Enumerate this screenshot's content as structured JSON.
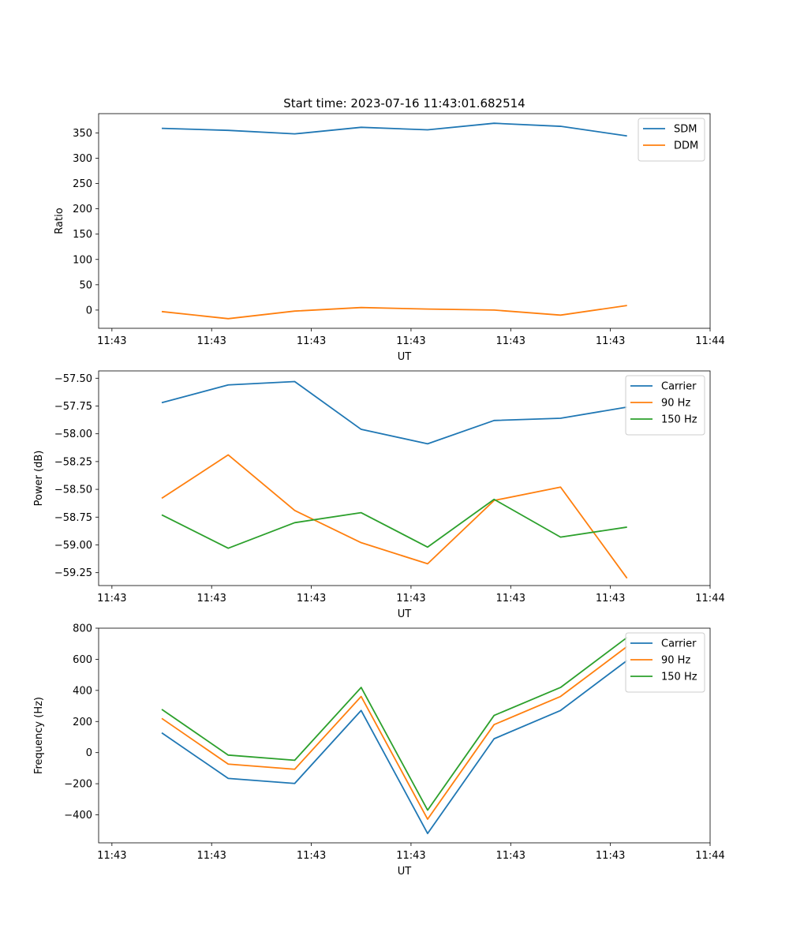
{
  "figure_title": "Start time: 2023-07-16 11:43:01.682514",
  "colors": {
    "c1": "#1f77b4",
    "c2": "#ff7f0e",
    "c3": "#2ca02c"
  },
  "chart_data": [
    {
      "type": "line",
      "title": "Start time: 2023-07-16 11:43:01.682514",
      "xlabel": "UT",
      "ylabel": "Ratio",
      "xlim": [
        0.4,
        9.6
      ],
      "x_ticks": [
        0.6,
        2.1,
        3.6,
        5.1,
        6.6,
        8.1,
        9.6
      ],
      "x_tick_labels": [
        "11:43",
        "11:43",
        "11:43",
        "11:43",
        "11:43",
        "11:43",
        "11:44"
      ],
      "ylim": [
        -36,
        388
      ],
      "y_ticks": [
        0,
        50,
        100,
        150,
        200,
        250,
        300,
        350
      ],
      "y_tick_labels": [
        "0",
        "50",
        "100",
        "150",
        "200",
        "250",
        "300",
        "350"
      ],
      "x": [
        1.35,
        2.35,
        3.35,
        4.35,
        5.35,
        6.35,
        7.35,
        8.35
      ],
      "legend_position": "upper-right",
      "series": [
        {
          "name": "SDM",
          "values": [
            359,
            355,
            348,
            361,
            356,
            369,
            363,
            344
          ]
        },
        {
          "name": "DDM",
          "values": [
            -3,
            -17,
            -2,
            5,
            2,
            0,
            -10,
            9
          ]
        }
      ]
    },
    {
      "type": "line",
      "title": "",
      "xlabel": "UT",
      "ylabel": "Power (dB)",
      "xlim": [
        0.4,
        9.6
      ],
      "x_ticks": [
        0.6,
        2.1,
        3.6,
        5.1,
        6.6,
        8.1,
        9.6
      ],
      "x_tick_labels": [
        "11:43",
        "11:43",
        "11:43",
        "11:43",
        "11:43",
        "11:43",
        "11:44"
      ],
      "ylim": [
        -59.366,
        -57.434
      ],
      "y_ticks": [
        -59.25,
        -59.0,
        -58.75,
        -58.5,
        -58.25,
        -58.0,
        -57.75,
        -57.5
      ],
      "y_tick_labels": [
        "−59.25",
        "−59.00",
        "−58.75",
        "−58.50",
        "−58.25",
        "−58.00",
        "−57.75",
        "−57.50"
      ],
      "x": [
        1.35,
        2.35,
        3.35,
        4.35,
        5.35,
        6.35,
        7.35,
        8.35
      ],
      "legend_position": "upper-right",
      "series": [
        {
          "name": "Carrier",
          "values": [
            -57.72,
            -57.56,
            -57.53,
            -57.96,
            -58.09,
            -57.88,
            -57.86,
            -57.76
          ]
        },
        {
          "name": "90 Hz",
          "values": [
            -58.58,
            -58.19,
            -58.69,
            -58.98,
            -59.17,
            -58.6,
            -58.48,
            -59.3
          ]
        },
        {
          "name": "150 Hz",
          "values": [
            -58.73,
            -59.03,
            -58.8,
            -58.71,
            -59.02,
            -58.59,
            -58.93,
            -58.84
          ]
        }
      ]
    },
    {
      "type": "line",
      "title": "",
      "xlabel": "UT",
      "ylabel": "Frequency (Hz)",
      "xlim": [
        0.4,
        9.6
      ],
      "x_ticks": [
        0.6,
        2.1,
        3.6,
        5.1,
        6.6,
        8.1,
        9.6
      ],
      "x_tick_labels": [
        "11:43",
        "11:43",
        "11:43",
        "11:43",
        "11:43",
        "11:43",
        "11:44"
      ],
      "ylim": [
        -580,
        800
      ],
      "y_ticks": [
        -400,
        -200,
        0,
        200,
        400,
        600,
        800
      ],
      "y_tick_labels": [
        "−400",
        "−200",
        "0",
        "200",
        "400",
        "600",
        "800"
      ],
      "x": [
        1.35,
        2.35,
        3.35,
        4.35,
        5.35,
        6.35,
        7.35,
        8.35
      ],
      "legend_position": "upper-right",
      "series": [
        {
          "name": "Carrier",
          "values": [
            127,
            -166,
            -198,
            271,
            -520,
            89,
            271,
            592
          ]
        },
        {
          "name": "90 Hz",
          "values": [
            220,
            -74,
            -107,
            361,
            -428,
            180,
            361,
            682
          ]
        },
        {
          "name": "150 Hz",
          "values": [
            278,
            -16,
            -49,
            419,
            -370,
            239,
            419,
            740
          ]
        }
      ]
    }
  ]
}
